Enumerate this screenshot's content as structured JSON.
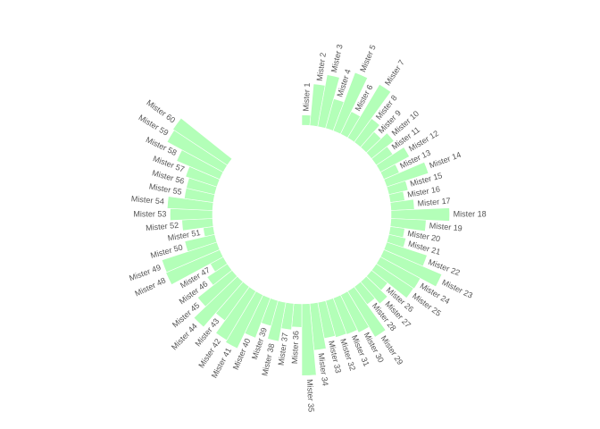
{
  "chart_data": {
    "type": "bar",
    "polar": true,
    "bar_color": "#b3ffb8",
    "label_color": "#555555",
    "grid": false,
    "legend": "none",
    "title": "",
    "xlabel": "",
    "ylabel": "",
    "empty_slots_after_last": 10,
    "categories": [
      "Mister 1",
      "Mister 2",
      "Mister 3",
      "Mister 4",
      "Mister 5",
      "Mister 6",
      "Mister 7",
      "Mister 8",
      "Mister 9",
      "Mister 10",
      "Mister 11",
      "Mister 12",
      "Mister 13",
      "Mister 14",
      "Mister 15",
      "Mister 16",
      "Mister 17",
      "Mister 18",
      "Mister 19",
      "Mister 20",
      "Mister 21",
      "Mister 22",
      "Mister 23",
      "Mister 24",
      "Mister 25",
      "Mister 26",
      "Mister 27",
      "Mister 28",
      "Mister 29",
      "Mister 30",
      "Mister 31",
      "Mister 32",
      "Mister 33",
      "Mister 34",
      "Mister 35",
      "Mister 36",
      "Mister 37",
      "Mister 38",
      "Mister 39",
      "Mister 40",
      "Mister 41",
      "Mister 42",
      "Mister 43",
      "Mister 44",
      "Mister 45",
      "Mister 46",
      "Mister 47",
      "Mister 48",
      "Mister 49",
      "Mister 50",
      "Mister 51",
      "Mister 52",
      "Mister 53",
      "Mister 54",
      "Mister 55",
      "Mister 56",
      "Mister 57",
      "Mister 58",
      "Mister 59",
      "Mister 60"
    ],
    "values": [
      14,
      57,
      72,
      42,
      85,
      34,
      85,
      40,
      28,
      39,
      27,
      45,
      23,
      60,
      27,
      20,
      32,
      80,
      48,
      20,
      24,
      58,
      86,
      62,
      61,
      28,
      40,
      30,
      73,
      57,
      53,
      52,
      50,
      64,
      98,
      32,
      36,
      54,
      36,
      58,
      81,
      78,
      57,
      82,
      60,
      33,
      20,
      80,
      79,
      42,
      14,
      42,
      58,
      62,
      40,
      40,
      45,
      64,
      87,
      89
    ]
  }
}
